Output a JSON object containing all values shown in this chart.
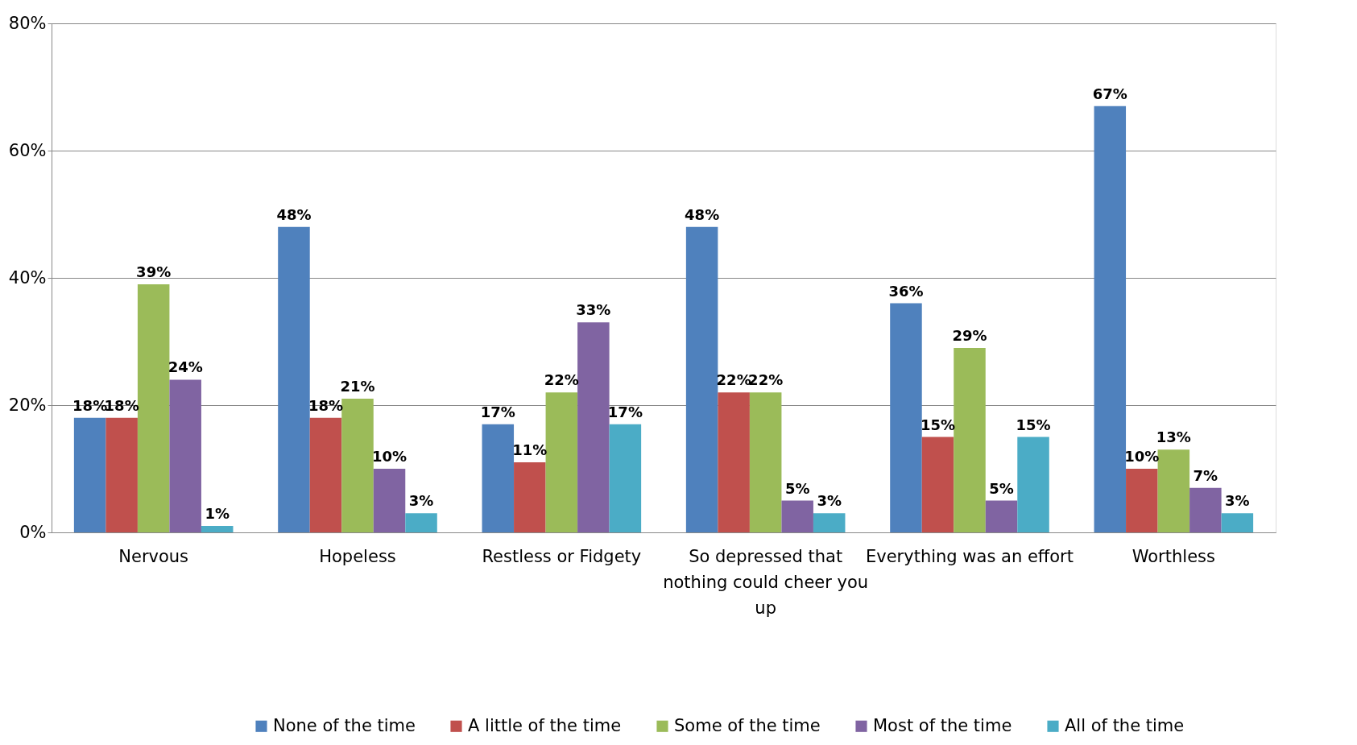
{
  "chart_data": {
    "type": "bar",
    "categories": [
      "Nervous",
      "Hopeless",
      "Restless or Fidgety",
      "So depressed that nothing could cheer you up",
      "Everything was an effort",
      "Worthless"
    ],
    "series": [
      {
        "name": "None of the time",
        "color": "#4f81bd",
        "values": [
          18,
          48,
          17,
          48,
          36,
          67
        ],
        "value_labels": [
          "18%",
          "48%",
          "17%",
          "48%",
          "36%",
          "67%"
        ]
      },
      {
        "name": "A little of the time",
        "color": "#c0504d",
        "values": [
          18,
          18,
          11,
          22,
          15,
          10
        ],
        "value_labels": [
          "18%",
          "18%",
          "11%",
          "22%",
          "15%",
          "10%"
        ]
      },
      {
        "name": "Some of the time",
        "color": "#9bbb59",
        "values": [
          39,
          21,
          22,
          22,
          29,
          13
        ],
        "value_labels": [
          "39%",
          "21%",
          "22%",
          "22%",
          "29%",
          "13%"
        ]
      },
      {
        "name": "Most of the time",
        "color": "#8064a2",
        "values": [
          24,
          10,
          33,
          5,
          5,
          7
        ],
        "value_labels": [
          "24%",
          "10%",
          "33%",
          "5%",
          "5%",
          "7%"
        ]
      },
      {
        "name": "All of the time",
        "color": "#4bacc6",
        "values": [
          1,
          3,
          17,
          3,
          15,
          3
        ],
        "value_labels": [
          "1%",
          "3%",
          "17%",
          "3%",
          "15%",
          "3%"
        ]
      }
    ],
    "ylim": [
      0,
      80
    ],
    "yticks": [
      {
        "value": 0,
        "label": "0%"
      },
      {
        "value": 20,
        "label": "20%"
      },
      {
        "value": 40,
        "label": "40%"
      },
      {
        "value": 60,
        "label": "60%"
      },
      {
        "value": 80,
        "label": "80%"
      }
    ],
    "grid": "y",
    "legend": "bottom"
  }
}
